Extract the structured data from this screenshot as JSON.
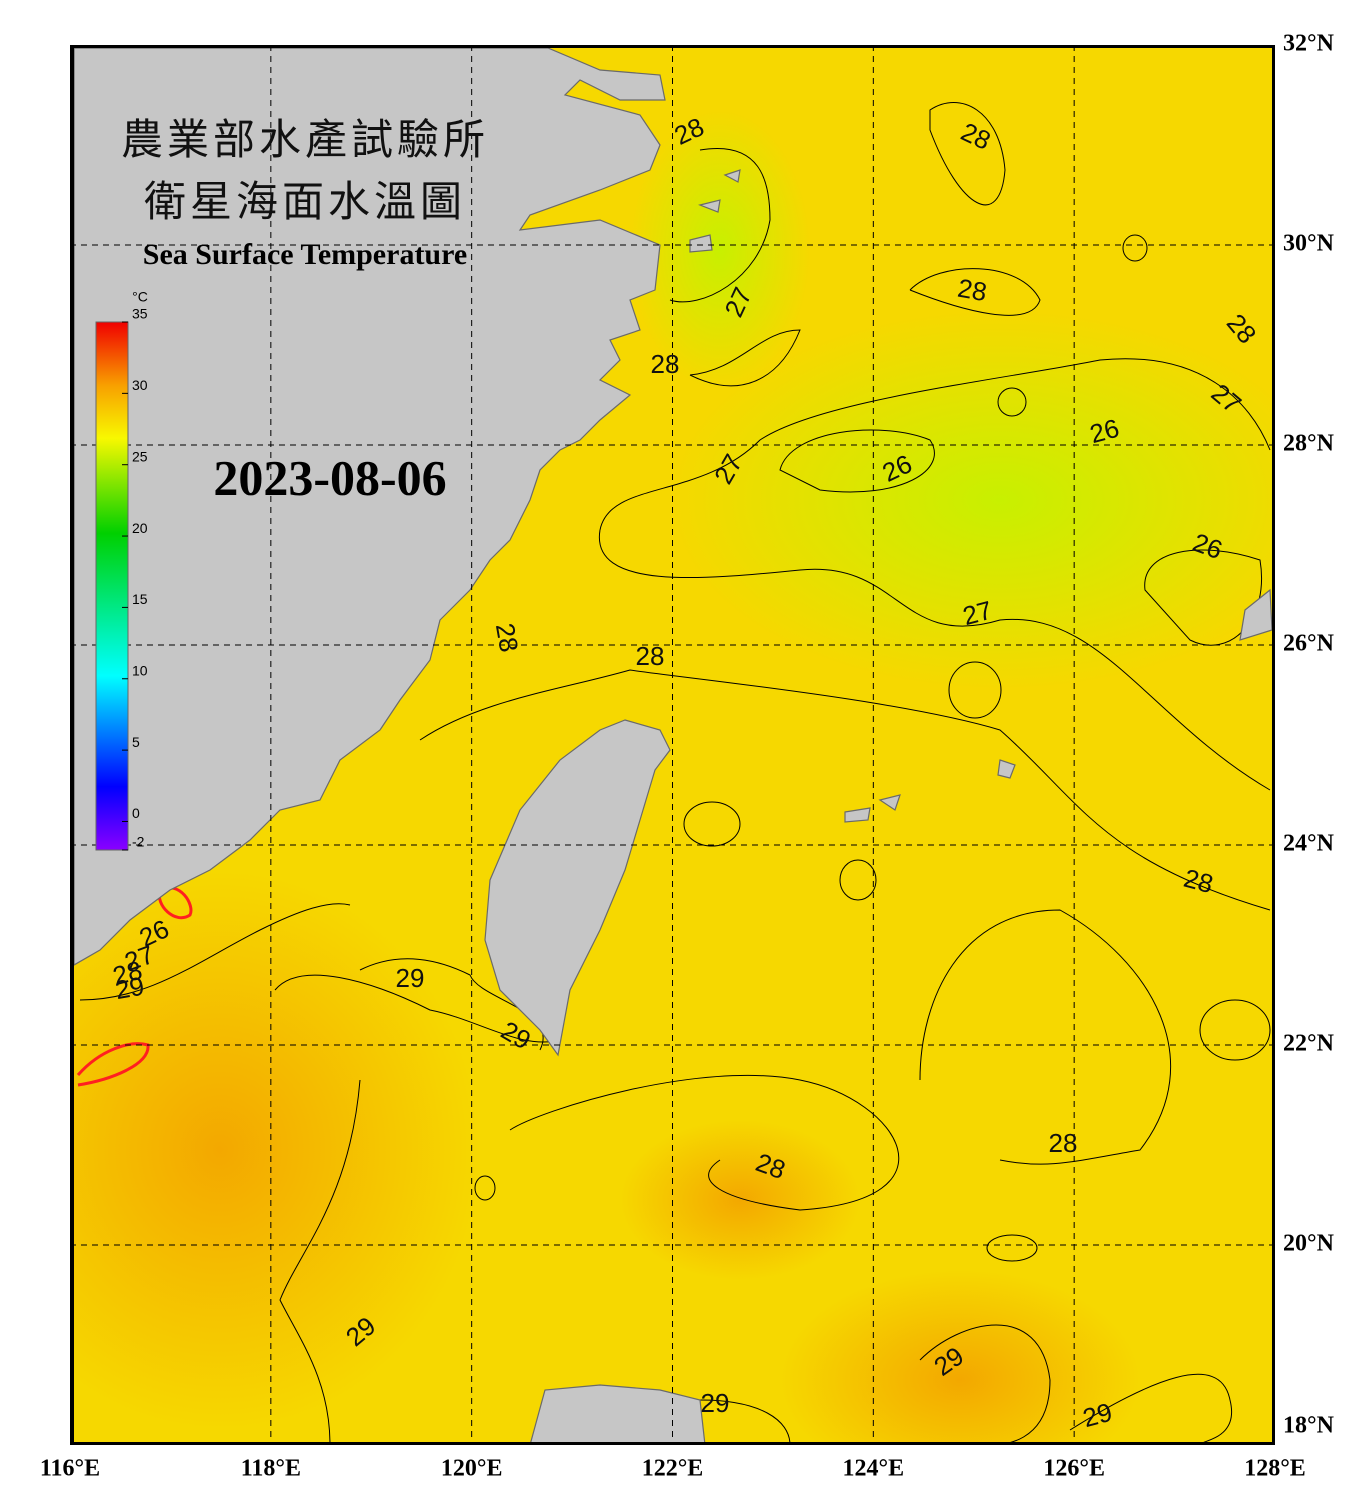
{
  "map": {
    "title_zh": "農業部水產試驗所",
    "subtitle_zh": "衛星海面水溫圖",
    "title_en": "Sea Surface Temperature",
    "date": "2023-08-06",
    "colorbar": {
      "unit": "°C",
      "range": [
        -2,
        35
      ],
      "ticks": [
        35,
        30,
        25,
        20,
        15,
        10,
        5,
        0,
        -2
      ]
    },
    "lon_range": [
      116,
      128
    ],
    "lat_range": [
      18,
      32
    ],
    "lon_ticks": [
      {
        "value": 116,
        "label": "116°E"
      },
      {
        "value": 118,
        "label": "118°E"
      },
      {
        "value": 120,
        "label": "120°E"
      },
      {
        "value": 122,
        "label": "122°E"
      },
      {
        "value": 124,
        "label": "124°E"
      },
      {
        "value": 126,
        "label": "126°E"
      },
      {
        "value": 128,
        "label": "128°E"
      }
    ],
    "lat_ticks": [
      {
        "value": 18,
        "label": "18°N"
      },
      {
        "value": 20,
        "label": "20°N"
      },
      {
        "value": 22,
        "label": "22°N"
      },
      {
        "value": 24,
        "label": "24°N"
      },
      {
        "value": 26,
        "label": "26°N"
      },
      {
        "value": 28,
        "label": "28°N"
      },
      {
        "value": 30,
        "label": "30°N"
      },
      {
        "value": 32,
        "label": "32°N"
      }
    ],
    "contour_labels": [
      28,
      28,
      28,
      27,
      28,
      28,
      27,
      26,
      27,
      26,
      26,
      27,
      28,
      28,
      28,
      26,
      27,
      28,
      29,
      29,
      29,
      28,
      28,
      29,
      29,
      29,
      29
    ]
  }
}
